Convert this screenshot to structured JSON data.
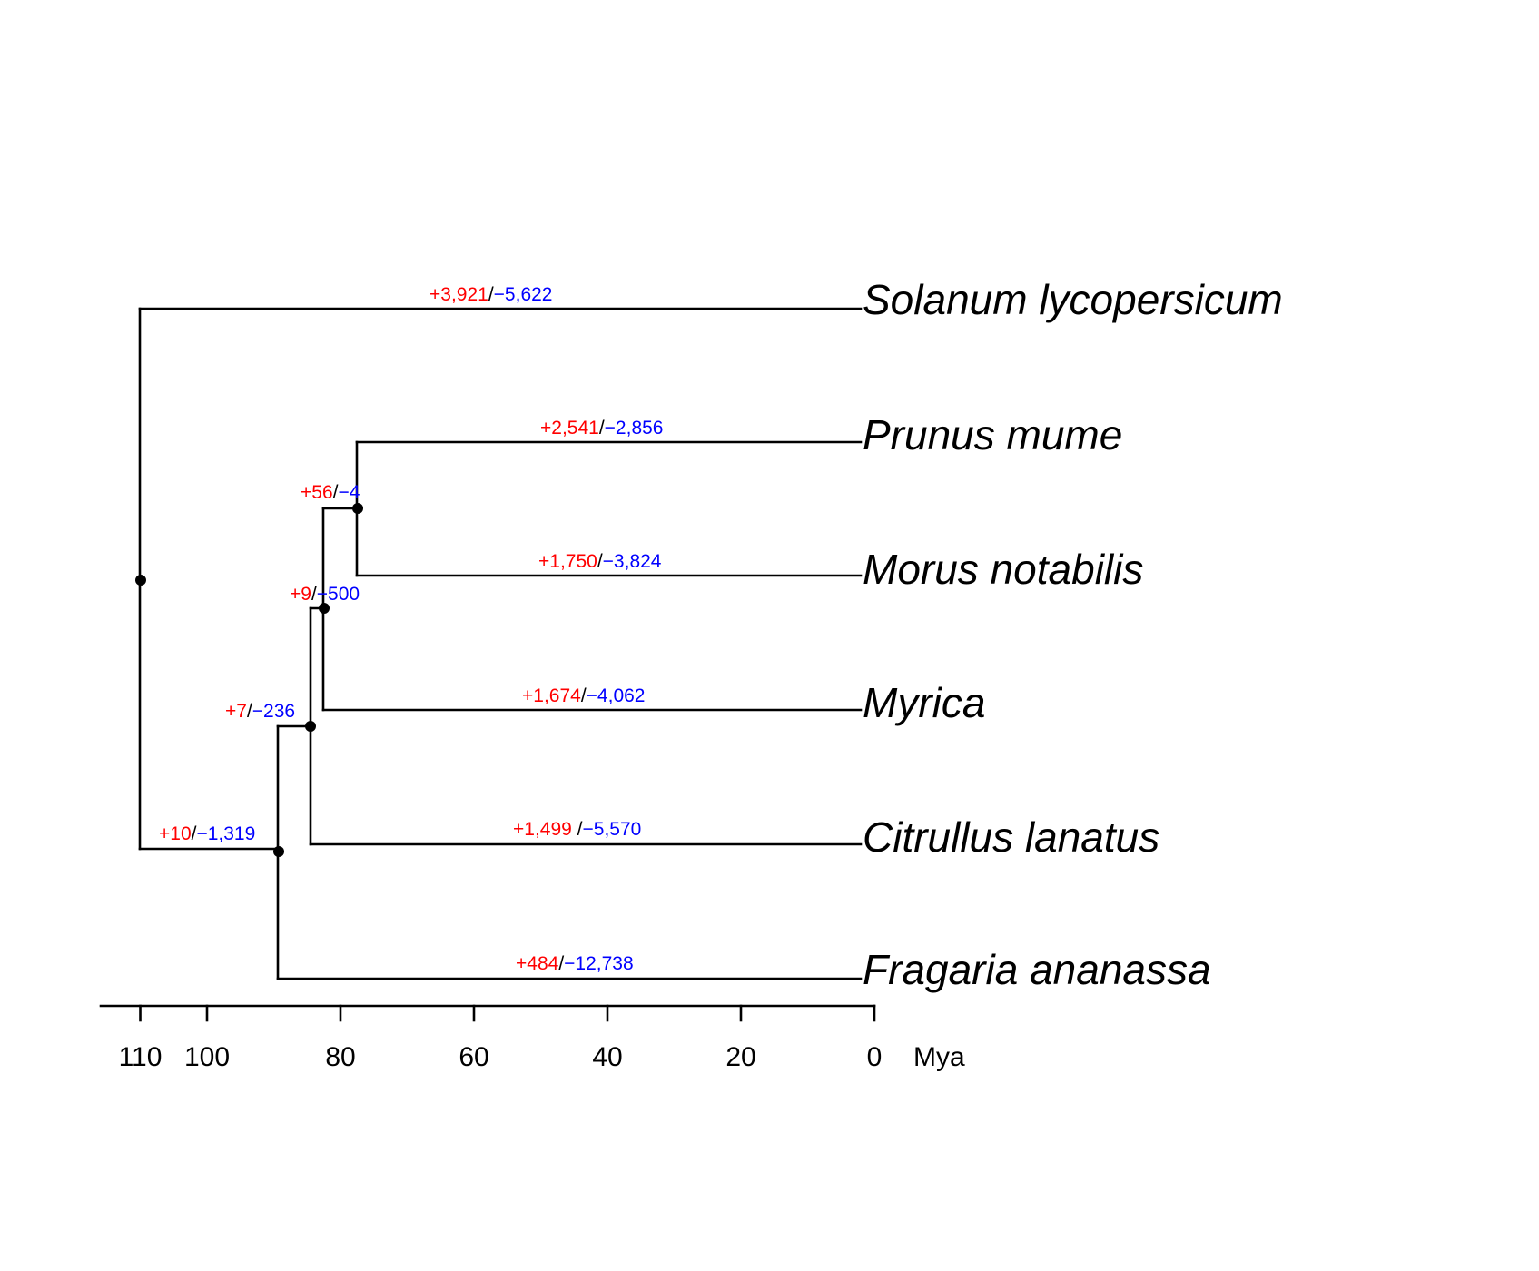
{
  "colors": {
    "gain": "#ff0000",
    "loss": "#0000ff",
    "line": "#000000",
    "background": "#ffffff"
  },
  "tree": {
    "tips": [
      {
        "id": "sol",
        "label": "Solanum lycopersicum",
        "gain": "+3,921",
        "sep": "/",
        "loss": "−5,622"
      },
      {
        "id": "pru",
        "label": "Prunus mume",
        "gain": "+2,541",
        "sep": "/",
        "loss": "−2,856"
      },
      {
        "id": "mor",
        "label": "Morus notabilis",
        "gain": "+1,750",
        "sep": "/",
        "loss": "−3,824"
      },
      {
        "id": "myr",
        "label": "Myrica",
        "gain": "+1,674",
        "sep": "/",
        "loss": "−4,062"
      },
      {
        "id": "cit",
        "label": "Citrullus lanatus",
        "gain": "+1,499",
        "sep": " /",
        "loss": "−5,570"
      },
      {
        "id": "fra",
        "label": "Fragaria ananassa",
        "gain": "+484",
        "sep": "/",
        "loss": "−12,738"
      }
    ],
    "internal_nodes": [
      {
        "id": "n_pru_mor",
        "gain": "+56",
        "sep": "/",
        "loss": "−4"
      },
      {
        "id": "n_myr",
        "gain": "+9",
        "sep": "/",
        "loss": "−500"
      },
      {
        "id": "n_cit",
        "gain": "+7",
        "sep": "/",
        "loss": "−236"
      },
      {
        "id": "n_fra",
        "gain": "+10",
        "sep": "/",
        "loss": "−1,319"
      },
      {
        "id": "root"
      }
    ]
  },
  "time_axis": {
    "unit_label": "Mya",
    "ticks": [
      {
        "value": 110,
        "label": "110"
      },
      {
        "value": 100,
        "label": "100"
      },
      {
        "value": 80,
        "label": "80"
      },
      {
        "value": 60,
        "label": "60"
      },
      {
        "value": 40,
        "label": "40"
      },
      {
        "value": 20,
        "label": "20"
      },
      {
        "value": 0,
        "label": "0"
      }
    ],
    "range": [
      116,
      0
    ]
  }
}
